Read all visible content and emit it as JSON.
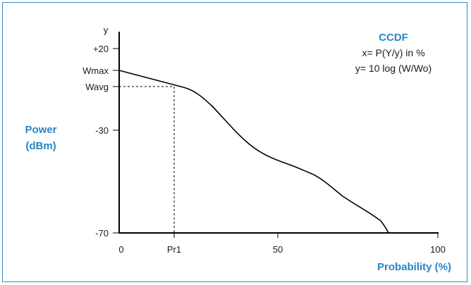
{
  "title": "CCDF",
  "definition_x": "x= P(Y/y) in %",
  "definition_y": "y= 10 log (W/Wo)",
  "y_axis_label": [
    "Power",
    "(dBm)"
  ],
  "x_axis_label": "Probability (%)",
  "y_axis_symbol": "y",
  "y_ticks": [
    "+20",
    "Wmax",
    "Wavg",
    "-30",
    "-70"
  ],
  "x_ticks": [
    "0",
    "Pr1",
    "50",
    "100"
  ],
  "colors": {
    "frame": "#2f8fc8",
    "accent": "#2a84c4",
    "line": "#000000"
  }
}
